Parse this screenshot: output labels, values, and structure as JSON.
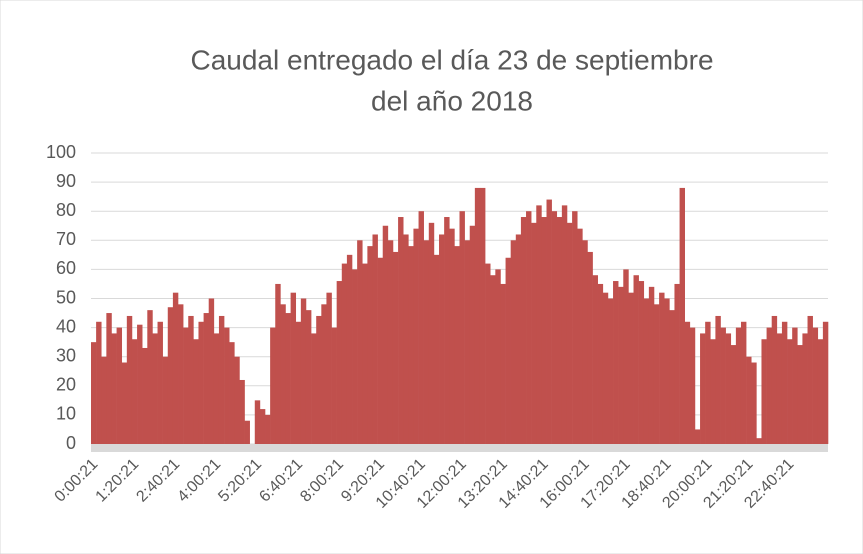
{
  "chart_data": {
    "type": "bar",
    "title": "Caudal entregado el día 23 de septiembre del año 2018",
    "categories": [
      "0:00:21",
      null,
      null,
      null,
      null,
      null,
      null,
      null,
      "1:20:21",
      null,
      null,
      null,
      null,
      null,
      null,
      null,
      "2:40:21",
      null,
      null,
      null,
      null,
      null,
      null,
      null,
      "4:00:21",
      null,
      null,
      null,
      null,
      null,
      null,
      null,
      "5:20:21",
      null,
      null,
      null,
      null,
      null,
      null,
      null,
      "6:40:21",
      null,
      null,
      null,
      null,
      null,
      null,
      null,
      "8:00:21",
      null,
      null,
      null,
      null,
      null,
      null,
      null,
      "9:20:21",
      null,
      null,
      null,
      null,
      null,
      null,
      null,
      "10:40:21",
      null,
      null,
      null,
      null,
      null,
      null,
      null,
      "12:00:21",
      null,
      null,
      null,
      null,
      null,
      null,
      null,
      "13:20:21",
      null,
      null,
      null,
      null,
      null,
      null,
      null,
      "14:40:21",
      null,
      null,
      null,
      null,
      null,
      null,
      null,
      "16:00:21",
      null,
      null,
      null,
      null,
      null,
      null,
      null,
      "17:20:21",
      null,
      null,
      null,
      null,
      null,
      null,
      null,
      "18:40:21",
      null,
      null,
      null,
      null,
      null,
      null,
      null,
      "20:00:21",
      null,
      null,
      null,
      null,
      null,
      null,
      null,
      "21:20:21",
      null,
      null,
      null,
      null,
      null,
      null,
      null,
      "22:40:21",
      null,
      null,
      null,
      null,
      null,
      null,
      null
    ],
    "values": [
      35,
      42,
      30,
      45,
      38,
      40,
      28,
      44,
      36,
      41,
      33,
      46,
      38,
      42,
      30,
      47,
      52,
      48,
      40,
      44,
      36,
      42,
      45,
      50,
      38,
      44,
      40,
      35,
      30,
      22,
      8,
      0,
      15,
      12,
      10,
      40,
      55,
      48,
      45,
      52,
      42,
      50,
      46,
      38,
      44,
      48,
      52,
      40,
      56,
      62,
      65,
      60,
      70,
      62,
      68,
      72,
      64,
      75,
      70,
      66,
      78,
      72,
      68,
      74,
      80,
      70,
      76,
      65,
      72,
      78,
      74,
      68,
      80,
      70,
      75,
      88,
      88,
      62,
      58,
      60,
      55,
      64,
      70,
      72,
      78,
      80,
      76,
      82,
      78,
      84,
      80,
      78,
      82,
      76,
      80,
      74,
      70,
      66,
      58,
      55,
      52,
      50,
      56,
      54,
      60,
      52,
      58,
      56,
      50,
      54,
      48,
      52,
      50,
      46,
      55,
      88,
      42,
      40,
      5,
      38,
      42,
      36,
      44,
      40,
      38,
      34,
      40,
      42,
      30,
      28,
      2,
      36,
      40,
      44,
      38,
      42,
      36,
      40,
      34,
      38,
      44,
      40,
      36,
      42
    ],
    "color": "#c0504d",
    "ylim": [
      0,
      100
    ],
    "yticks": [
      0,
      10,
      20,
      30,
      40,
      50,
      60,
      70,
      80,
      90,
      100
    ],
    "grid": true
  }
}
